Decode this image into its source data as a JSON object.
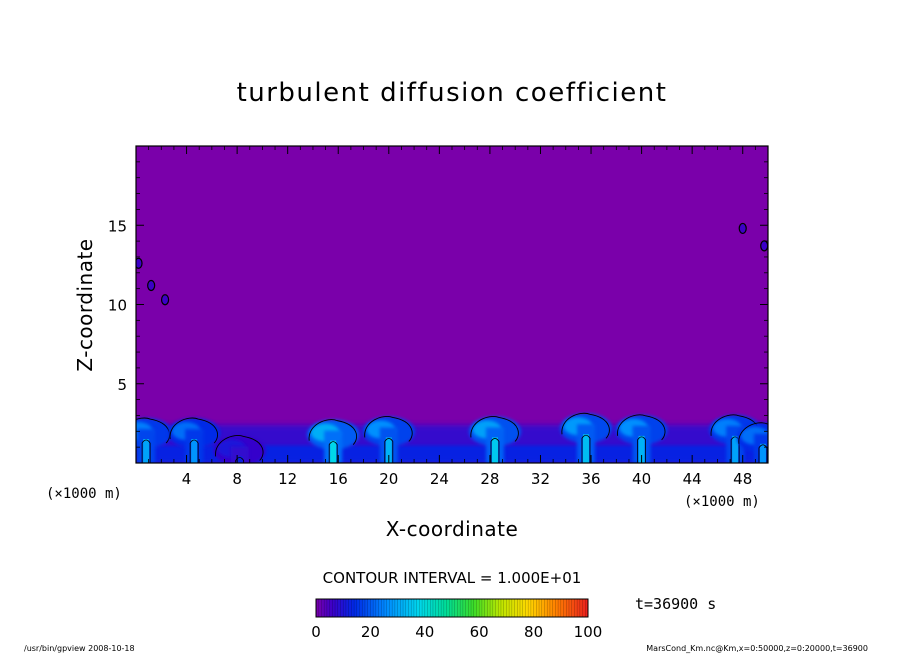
{
  "chart_data": {
    "type": "heatmap",
    "title": "turbulent diffusion coefficient",
    "xlabel": "X-coordinate",
    "ylabel": "Z-coordinate",
    "x_unit": "(×1000 m)",
    "y_unit": "(×1000 m)",
    "xlim": [
      0,
      50
    ],
    "ylim": [
      0,
      20
    ],
    "x_ticks": [
      4,
      8,
      12,
      16,
      20,
      24,
      28,
      32,
      36,
      40,
      44,
      48
    ],
    "y_ticks": [
      5,
      10,
      15
    ],
    "contour_interval_label": "CONTOUR INTERVAL = 1.000E+01",
    "time_label": "t=36900 s",
    "colorbar": {
      "min": 0,
      "max": 100,
      "ticks": [
        0,
        20,
        40,
        60,
        80,
        100
      ]
    },
    "background_value": 0,
    "plumes": [
      {
        "x": 0.8,
        "top": 2.9,
        "peak": 35
      },
      {
        "x": 4.6,
        "top": 2.9,
        "peak": 32
      },
      {
        "x": 8.2,
        "top": 1.8,
        "peak": 15
      },
      {
        "x": 15.6,
        "top": 2.8,
        "peak": 45
      },
      {
        "x": 20.0,
        "top": 3.0,
        "peak": 38
      },
      {
        "x": 28.4,
        "top": 3.0,
        "peak": 42
      },
      {
        "x": 35.6,
        "top": 3.2,
        "peak": 40
      },
      {
        "x": 40.0,
        "top": 3.1,
        "peak": 38
      },
      {
        "x": 47.4,
        "top": 3.1,
        "peak": 35
      },
      {
        "x": 49.6,
        "top": 2.6,
        "peak": 32
      }
    ],
    "upper_patches": [
      {
        "x": 0.2,
        "z": 12.6
      },
      {
        "x": 2.3,
        "z": 10.3
      },
      {
        "x": 1.2,
        "z": 11.2
      },
      {
        "x": 48.0,
        "z": 14.8
      },
      {
        "x": 49.7,
        "z": 13.7
      }
    ]
  },
  "footer": {
    "left": "/usr/bin/gpview   2008-10-18",
    "right": "MarsCond_Km.nc@Km,x=0:50000,z=0:20000,t=36900"
  },
  "colors": {
    "background_field": "#7A00AA",
    "plot_frame": "#000000",
    "page": "#ffffff"
  }
}
